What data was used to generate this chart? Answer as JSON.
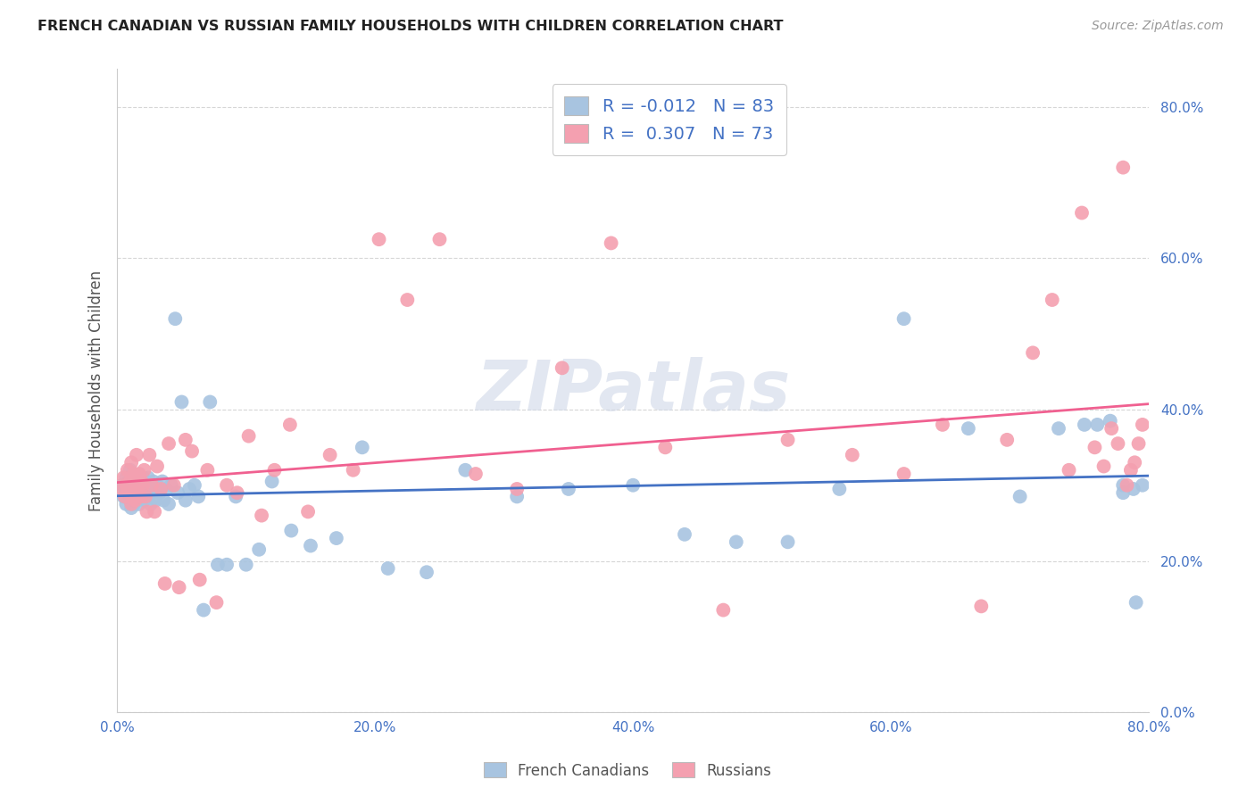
{
  "title": "FRENCH CANADIAN VS RUSSIAN FAMILY HOUSEHOLDS WITH CHILDREN CORRELATION CHART",
  "source": "Source: ZipAtlas.com",
  "ylabel": "Family Households with Children",
  "watermark": "ZIPatlas",
  "legend_bottom_fc": "French Canadians",
  "legend_bottom_ru": "Russians",
  "fc_color": "#a8c4e0",
  "ru_color": "#f4a0b0",
  "fc_line_color": "#4472c4",
  "ru_line_color": "#f06090",
  "fc_R": -0.012,
  "fc_N": 83,
  "ru_R": 0.307,
  "ru_N": 73,
  "fc_points_x": [
    0.004,
    0.005,
    0.006,
    0.007,
    0.007,
    0.008,
    0.009,
    0.01,
    0.01,
    0.011,
    0.011,
    0.012,
    0.012,
    0.013,
    0.013,
    0.014,
    0.014,
    0.015,
    0.015,
    0.016,
    0.016,
    0.017,
    0.018,
    0.019,
    0.02,
    0.02,
    0.021,
    0.022,
    0.023,
    0.024,
    0.025,
    0.026,
    0.027,
    0.028,
    0.03,
    0.031,
    0.033,
    0.035,
    0.036,
    0.038,
    0.04,
    0.042,
    0.045,
    0.047,
    0.05,
    0.053,
    0.056,
    0.06,
    0.063,
    0.067,
    0.072,
    0.078,
    0.085,
    0.092,
    0.1,
    0.11,
    0.12,
    0.135,
    0.15,
    0.17,
    0.19,
    0.21,
    0.24,
    0.27,
    0.31,
    0.35,
    0.4,
    0.44,
    0.48,
    0.52,
    0.56,
    0.61,
    0.66,
    0.7,
    0.73,
    0.75,
    0.76,
    0.77,
    0.78,
    0.78,
    0.788,
    0.79,
    0.795
  ],
  "fc_points_y": [
    0.3,
    0.285,
    0.295,
    0.31,
    0.275,
    0.29,
    0.305,
    0.28,
    0.32,
    0.295,
    0.27,
    0.31,
    0.285,
    0.295,
    0.275,
    0.305,
    0.28,
    0.3,
    0.29,
    0.31,
    0.285,
    0.275,
    0.3,
    0.29,
    0.295,
    0.31,
    0.28,
    0.3,
    0.29,
    0.31,
    0.285,
    0.275,
    0.295,
    0.305,
    0.28,
    0.3,
    0.29,
    0.305,
    0.28,
    0.295,
    0.275,
    0.3,
    0.52,
    0.29,
    0.41,
    0.28,
    0.295,
    0.3,
    0.285,
    0.135,
    0.41,
    0.195,
    0.195,
    0.285,
    0.195,
    0.215,
    0.305,
    0.24,
    0.22,
    0.23,
    0.35,
    0.19,
    0.185,
    0.32,
    0.285,
    0.295,
    0.3,
    0.235,
    0.225,
    0.225,
    0.295,
    0.52,
    0.375,
    0.285,
    0.375,
    0.38,
    0.38,
    0.385,
    0.29,
    0.3,
    0.295,
    0.145,
    0.3
  ],
  "ru_points_x": [
    0.004,
    0.005,
    0.006,
    0.007,
    0.008,
    0.009,
    0.01,
    0.011,
    0.011,
    0.012,
    0.013,
    0.014,
    0.015,
    0.016,
    0.017,
    0.018,
    0.019,
    0.02,
    0.021,
    0.022,
    0.023,
    0.025,
    0.027,
    0.029,
    0.031,
    0.034,
    0.037,
    0.04,
    0.044,
    0.048,
    0.053,
    0.058,
    0.064,
    0.07,
    0.077,
    0.085,
    0.093,
    0.102,
    0.112,
    0.122,
    0.134,
    0.148,
    0.165,
    0.183,
    0.203,
    0.225,
    0.25,
    0.278,
    0.31,
    0.345,
    0.383,
    0.425,
    0.47,
    0.52,
    0.57,
    0.61,
    0.64,
    0.67,
    0.69,
    0.71,
    0.725,
    0.738,
    0.748,
    0.758,
    0.765,
    0.771,
    0.776,
    0.78,
    0.783,
    0.786,
    0.789,
    0.792,
    0.795
  ],
  "ru_points_y": [
    0.295,
    0.31,
    0.285,
    0.3,
    0.32,
    0.29,
    0.305,
    0.275,
    0.33,
    0.295,
    0.315,
    0.28,
    0.34,
    0.295,
    0.315,
    0.285,
    0.305,
    0.3,
    0.32,
    0.285,
    0.265,
    0.34,
    0.3,
    0.265,
    0.325,
    0.295,
    0.17,
    0.355,
    0.3,
    0.165,
    0.36,
    0.345,
    0.175,
    0.32,
    0.145,
    0.3,
    0.29,
    0.365,
    0.26,
    0.32,
    0.38,
    0.265,
    0.34,
    0.32,
    0.625,
    0.545,
    0.625,
    0.315,
    0.295,
    0.455,
    0.62,
    0.35,
    0.135,
    0.36,
    0.34,
    0.315,
    0.38,
    0.14,
    0.36,
    0.475,
    0.545,
    0.32,
    0.66,
    0.35,
    0.325,
    0.375,
    0.355,
    0.72,
    0.3,
    0.32,
    0.33,
    0.355,
    0.38
  ]
}
